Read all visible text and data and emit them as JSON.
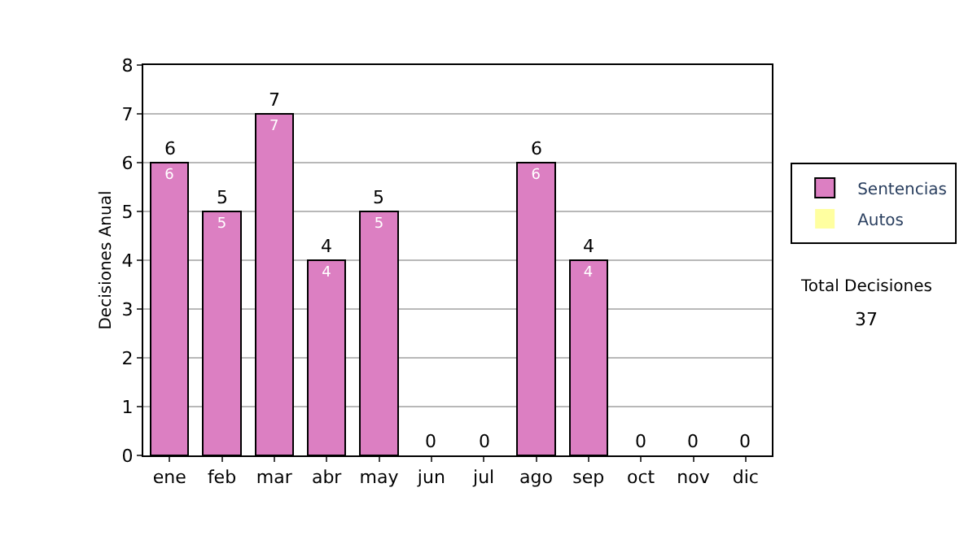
{
  "chart_data": {
    "type": "bar",
    "stacked": true,
    "ylabel": "Decisiones Anual",
    "categories": [
      "ene",
      "feb",
      "mar",
      "abr",
      "may",
      "jun",
      "jul",
      "ago",
      "sep",
      "oct",
      "nov",
      "dic"
    ],
    "series": [
      {
        "name": "Sentencias",
        "color": "#dc7fc2",
        "values": [
          6,
          5,
          7,
          4,
          5,
          0,
          0,
          6,
          4,
          0,
          0,
          0
        ],
        "value_labels": [
          "6",
          "5",
          "7",
          "4",
          "5",
          null,
          null,
          "6",
          "4",
          null,
          null,
          null
        ]
      },
      {
        "name": "Autos",
        "color": "#ffffa0",
        "values": [
          0,
          0,
          0,
          0,
          0,
          0,
          0,
          0,
          0,
          0,
          0,
          0
        ]
      }
    ],
    "totals": [
      "6",
      "5",
      "7",
      "4",
      "5",
      "0",
      "0",
      "6",
      "4",
      "0",
      "0",
      "0"
    ],
    "ylim": [
      0,
      8
    ],
    "yticks": [
      0,
      1,
      2,
      3,
      4,
      5,
      6,
      7,
      8
    ],
    "grid": "y",
    "legend": "right",
    "annotations": [
      "Total Decisiones",
      "37"
    ]
  }
}
